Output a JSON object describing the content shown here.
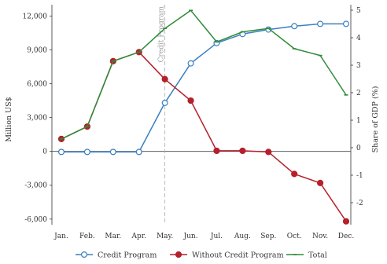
{
  "chart_data": {
    "type": "line",
    "x": [
      "Jan.",
      "Feb.",
      "Mar.",
      "Apr.",
      "May.",
      "Jun.",
      "Jul.",
      "Aug.",
      "Sep.",
      "Oct.",
      "Nov.",
      "Dec."
    ],
    "ylabel": "Million US$",
    "y2label": "Share of GDP (%)",
    "ylim": [
      -6500,
      13000
    ],
    "y2lim": [
      -2.8,
      5.2
    ],
    "yticks": [
      12000,
      9000,
      6000,
      3000,
      0,
      -3000,
      -6000
    ],
    "yticklabels": [
      "12,000",
      "9,000",
      "6,000",
      "3,000",
      "0",
      "-3,000",
      "-6,000"
    ],
    "y2ticks": [
      5,
      4,
      3,
      2,
      1,
      0,
      -1,
      -2
    ],
    "y2ticklabels": [
      "5",
      "4",
      "3",
      "2",
      "1",
      "0",
      "-1",
      "-2"
    ],
    "annotation": {
      "x_index": 4,
      "label": "Credit Program"
    },
    "zero_line": true,
    "grid": false,
    "legend_position": "bottom",
    "series": [
      {
        "name": "Credit Program",
        "color": "#3a7fc1",
        "marker": "open-circle",
        "values": [
          -50,
          -50,
          -50,
          -50,
          4300,
          7800,
          9600,
          10400,
          10800,
          11100,
          11300,
          11300
        ]
      },
      {
        "name": "Without Credit Program",
        "color": "#b5202b",
        "marker": "filled-circle",
        "values": [
          1100,
          2200,
          8000,
          8800,
          6400,
          4500,
          50,
          50,
          -50,
          -2000,
          -2800,
          -6200
        ]
      },
      {
        "name": "Total",
        "color": "#2e8b3a",
        "marker": "tick",
        "values": [
          1100,
          2200,
          8000,
          8800,
          10900,
          12500,
          9700,
          10600,
          10900,
          9100,
          8500,
          5000
        ]
      }
    ]
  }
}
